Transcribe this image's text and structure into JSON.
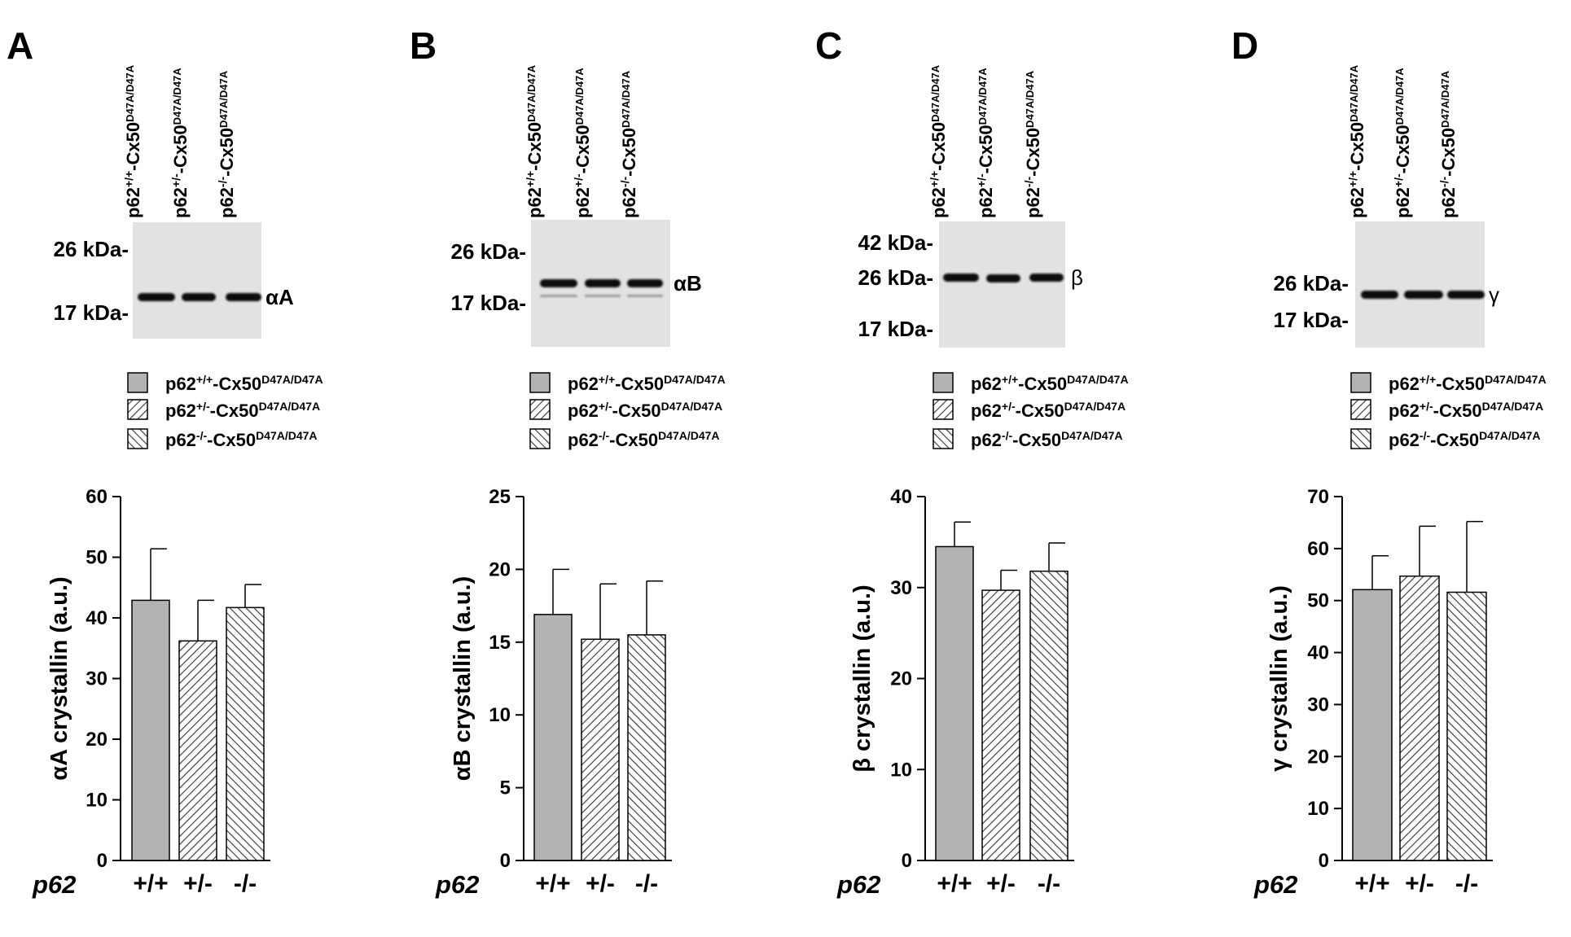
{
  "lane_labels": [
    {
      "prefix": "p62",
      "genotype": "+/+",
      "mid": "-Cx50",
      "allele": "D47A/D47A"
    },
    {
      "prefix": "p62",
      "genotype": "+/-",
      "mid": "-Cx50",
      "allele": "D47A/D47A"
    },
    {
      "prefix": "p62",
      "genotype": "-/-",
      "mid": "-Cx50",
      "allele": "D47A/D47A"
    }
  ],
  "x_axis_prefix": "p62",
  "colors": {
    "bar_fill": "#b3b3b3",
    "bar_stroke": "#000000",
    "blot_background": "#e2e2e2",
    "band": "#111111"
  },
  "panels": [
    {
      "letter": "A",
      "blot": {
        "markers": [
          "26 kDa-",
          "17 kDa-"
        ],
        "band_label": "αA"
      },
      "chart_data": {
        "type": "bar",
        "categories": [
          "+/+",
          "+/-",
          "-/-"
        ],
        "values": [
          42.9,
          36.2,
          41.7
        ],
        "errors": [
          8.5,
          6.7,
          3.8
        ],
        "ylabel": "αA crystallin (a.u.)",
        "ylim": [
          0,
          60
        ],
        "yticks": [
          0,
          10,
          20,
          30,
          40,
          50,
          60
        ],
        "fills": [
          "solid",
          "hatch-right",
          "hatch-left"
        ]
      }
    },
    {
      "letter": "B",
      "blot": {
        "markers": [
          "26 kDa-",
          "17 kDa-"
        ],
        "band_label": "αB"
      },
      "chart_data": {
        "type": "bar",
        "categories": [
          "+/+",
          "+/-",
          "-/-"
        ],
        "values": [
          16.9,
          15.2,
          15.5
        ],
        "errors": [
          3.1,
          3.8,
          3.7
        ],
        "ylabel": "αB crystallin (a.u.)",
        "ylim": [
          0,
          25
        ],
        "yticks": [
          0,
          5,
          10,
          15,
          20,
          25
        ],
        "fills": [
          "solid",
          "hatch-right",
          "hatch-left"
        ]
      }
    },
    {
      "letter": "C",
      "blot": {
        "markers": [
          "42 kDa-",
          "26 kDa-",
          "17 kDa-"
        ],
        "band_label": "β"
      },
      "chart_data": {
        "type": "bar",
        "categories": [
          "+/+",
          "+/-",
          "-/-"
        ],
        "values": [
          34.5,
          29.7,
          31.8
        ],
        "errors": [
          2.7,
          2.2,
          3.1
        ],
        "ylabel": "β crystallin (a.u.)",
        "ylim": [
          0,
          40
        ],
        "yticks": [
          0,
          10,
          20,
          30,
          40
        ],
        "fills": [
          "solid",
          "hatch-right",
          "hatch-left"
        ]
      }
    },
    {
      "letter": "D",
      "blot": {
        "markers": [
          "26 kDa-",
          "17 kDa-"
        ],
        "band_label": "γ"
      },
      "chart_data": {
        "type": "bar",
        "categories": [
          "+/+",
          "+/-",
          "-/-"
        ],
        "values": [
          52.1,
          54.7,
          51.6
        ],
        "errors": [
          6.5,
          9.6,
          13.6
        ],
        "ylabel": "γ crystallin (a.u.)",
        "ylim": [
          0,
          70
        ],
        "yticks": [
          0,
          10,
          20,
          30,
          40,
          50,
          60,
          70
        ],
        "fills": [
          "solid",
          "hatch-right",
          "hatch-left"
        ]
      }
    }
  ]
}
